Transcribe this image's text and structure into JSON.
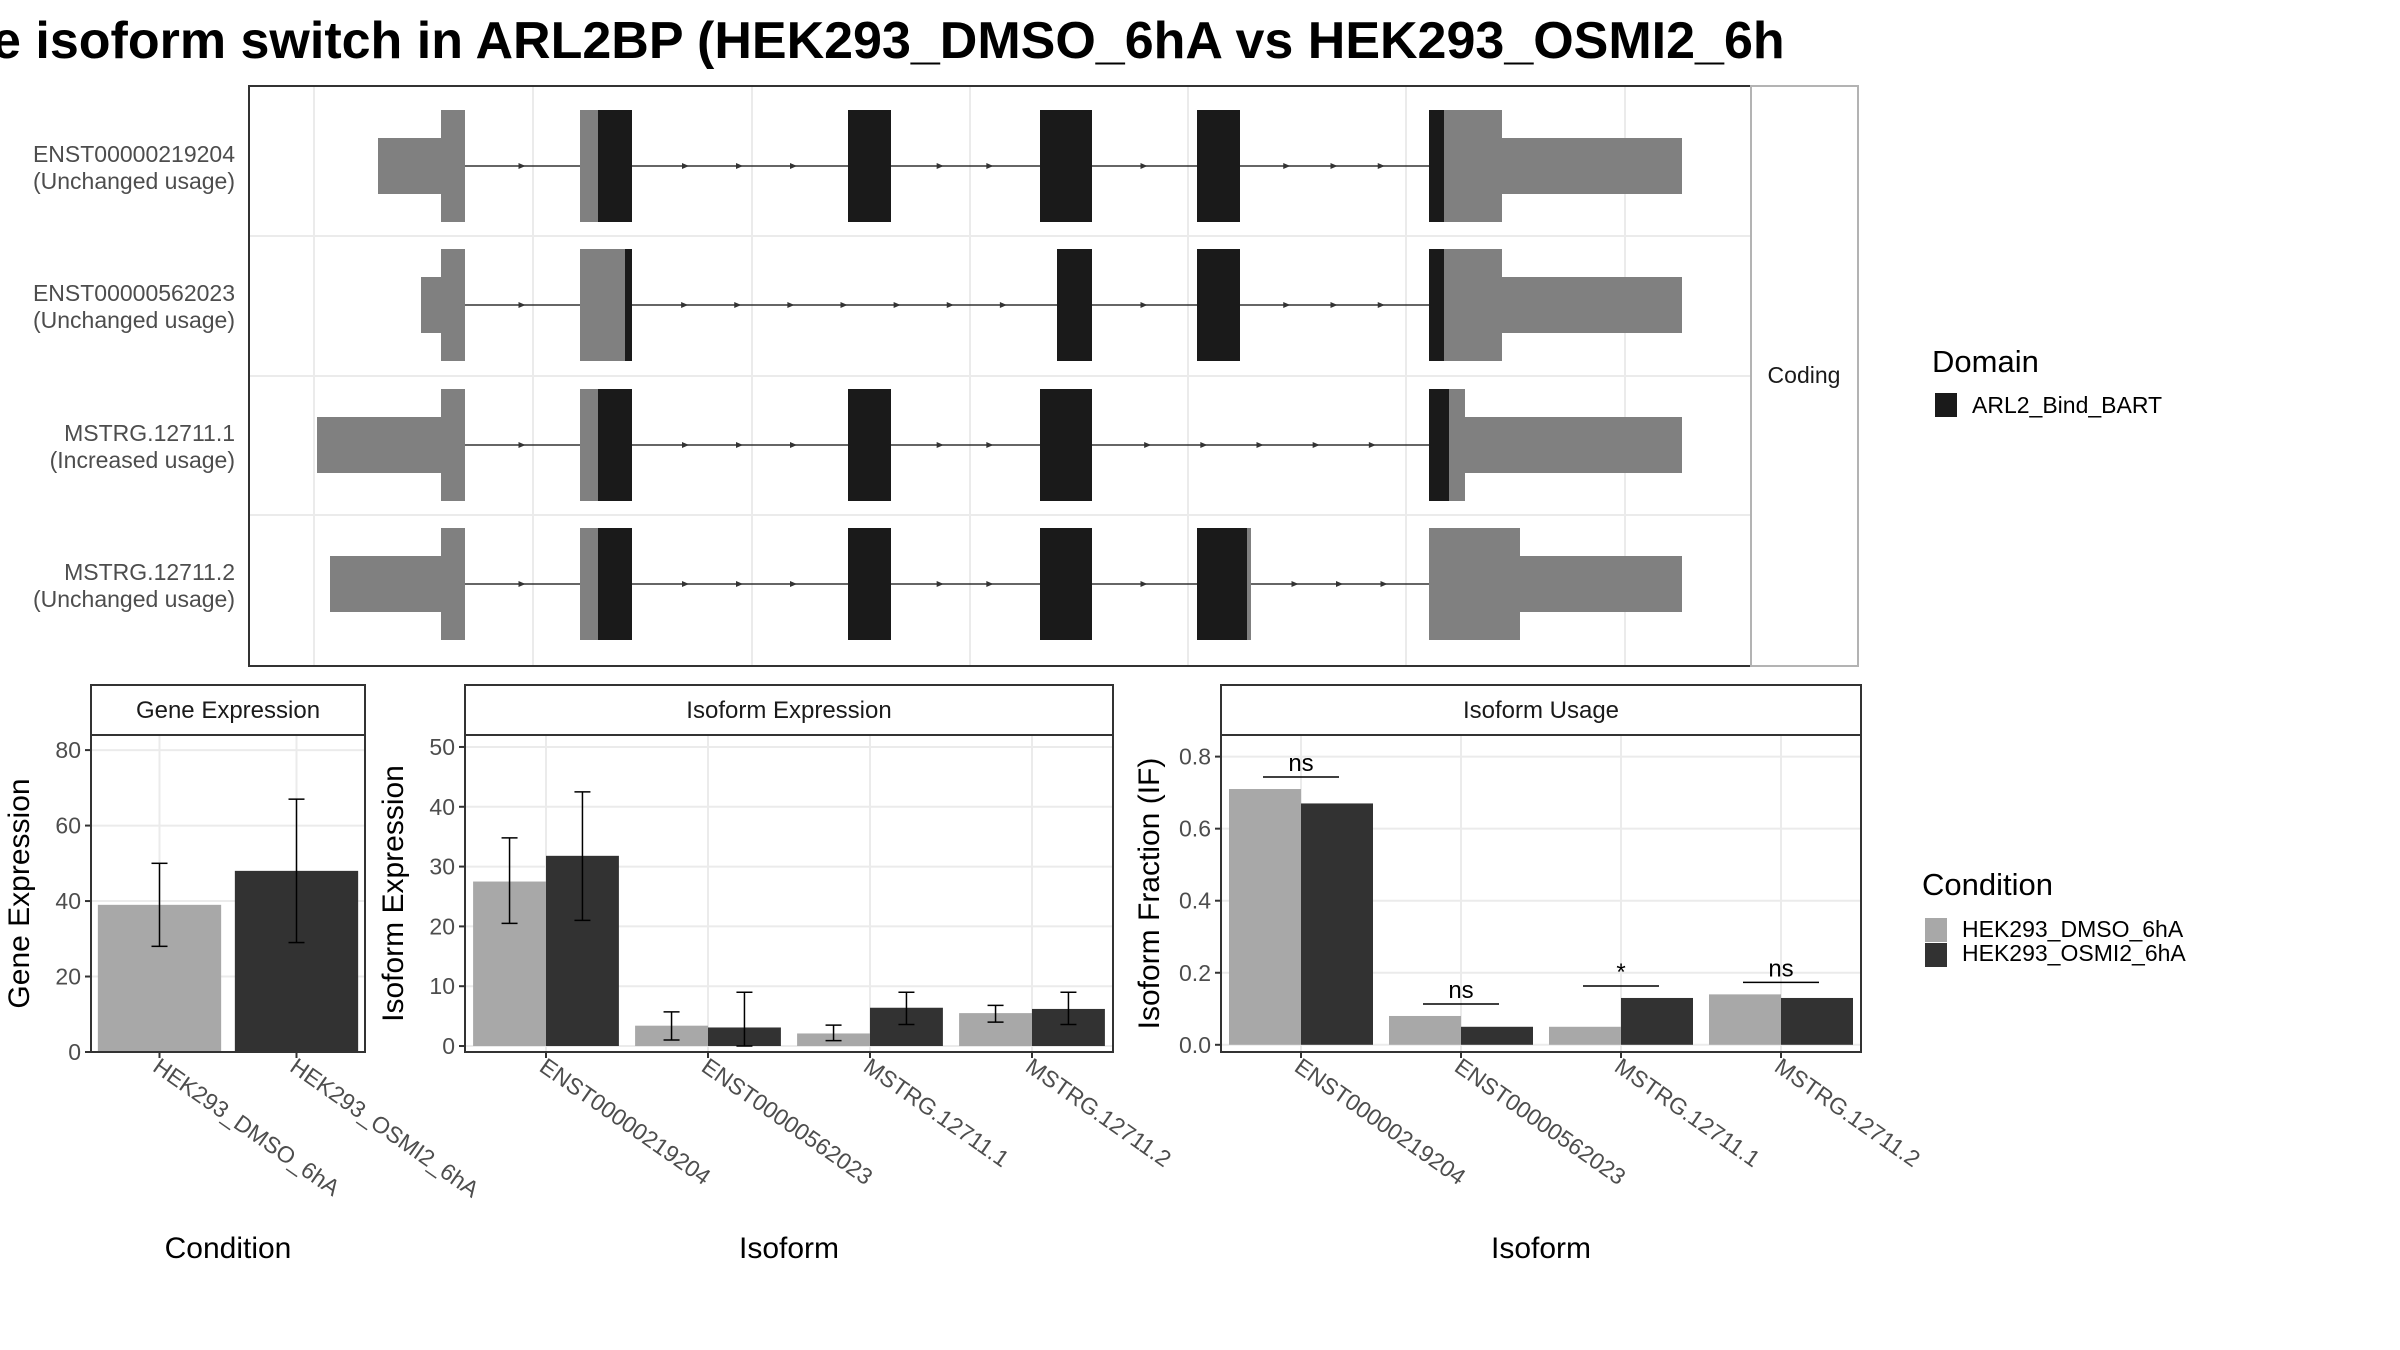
{
  "title": "e isoform switch in ARL2BP (HEK293_DMSO_6hA vs HEK293_OSMI2_6h",
  "colors": {
    "cond1": "#a8a8a8",
    "cond2": "#323232",
    "utr": "#808080",
    "domain": "#1a1a1a",
    "grid": "#ebebeb",
    "strip": "#ffffff"
  },
  "structure_strip": "Coding",
  "transcripts": [
    {
      "id": "ENST00000219204",
      "status": "(Unchanged usage)"
    },
    {
      "id": "ENST00000562023",
      "status": "(Unchanged usage)"
    },
    {
      "id": "MSTRG.12711.1",
      "status": "(Increased usage)"
    },
    {
      "id": "MSTRG.12711.2",
      "status": "(Unchanged usage)"
    }
  ],
  "domain_legend": {
    "title": "Domain",
    "items": [
      "ARL2_Bind_BART"
    ]
  },
  "condition_legend": {
    "title": "Condition",
    "items": [
      "HEK293_DMSO_6hA",
      "HEK293_OSMI2_6hA"
    ]
  },
  "chart_data": [
    {
      "type": "bar",
      "panel": "Gene Expression",
      "ylabel": "Gene Expression",
      "xlabel": "Condition",
      "ylim": [
        0,
        84
      ],
      "yticks": [
        0,
        20,
        40,
        60,
        80
      ],
      "categories": [
        "HEK293_DMSO_6hA",
        "HEK293_OSMI2_6hA"
      ],
      "values": [
        39,
        48
      ],
      "error_low": [
        28,
        29
      ],
      "error_high": [
        50,
        67
      ]
    },
    {
      "type": "bar",
      "panel": "Isoform Expression",
      "ylabel": "Isoform Expression",
      "xlabel": "Isoform",
      "ylim": [
        -1,
        52
      ],
      "yticks": [
        0,
        10,
        20,
        30,
        40,
        50
      ],
      "categories": [
        "ENST00000219204",
        "ENST00000562023",
        "MSTRG.12711.1",
        "MSTRG.12711.2"
      ],
      "series": [
        {
          "name": "HEK293_DMSO_6hA",
          "values": [
            27.5,
            3.4,
            2.1,
            5.5
          ],
          "error_low": [
            20.5,
            1.0,
            0.9,
            4.0
          ],
          "error_high": [
            34.8,
            5.7,
            3.5,
            6.8
          ]
        },
        {
          "name": "HEK293_OSMI2_6hA",
          "values": [
            31.8,
            3.1,
            6.4,
            6.2
          ],
          "error_low": [
            21.0,
            0.0,
            3.6,
            3.6
          ],
          "error_high": [
            42.5,
            9.0,
            9.0,
            9.0
          ]
        }
      ]
    },
    {
      "type": "bar",
      "panel": "Isoform Usage",
      "ylabel": "Isoform Fraction (IF)",
      "xlabel": "Isoform",
      "ylim": [
        -0.02,
        0.86
      ],
      "yticks": [
        "0.0",
        "0.2",
        "0.4",
        "0.6",
        "0.8"
      ],
      "categories": [
        "ENST00000219204",
        "ENST00000562023",
        "MSTRG.12711.1",
        "MSTRG.12711.2"
      ],
      "series": [
        {
          "name": "HEK293_DMSO_6hA",
          "values": [
            0.71,
            0.08,
            0.05,
            0.14
          ]
        },
        {
          "name": "HEK293_OSMI2_6hA",
          "values": [
            0.67,
            0.05,
            0.13,
            0.13
          ]
        }
      ],
      "significance": [
        "ns",
        "ns",
        "*",
        "ns"
      ]
    }
  ]
}
